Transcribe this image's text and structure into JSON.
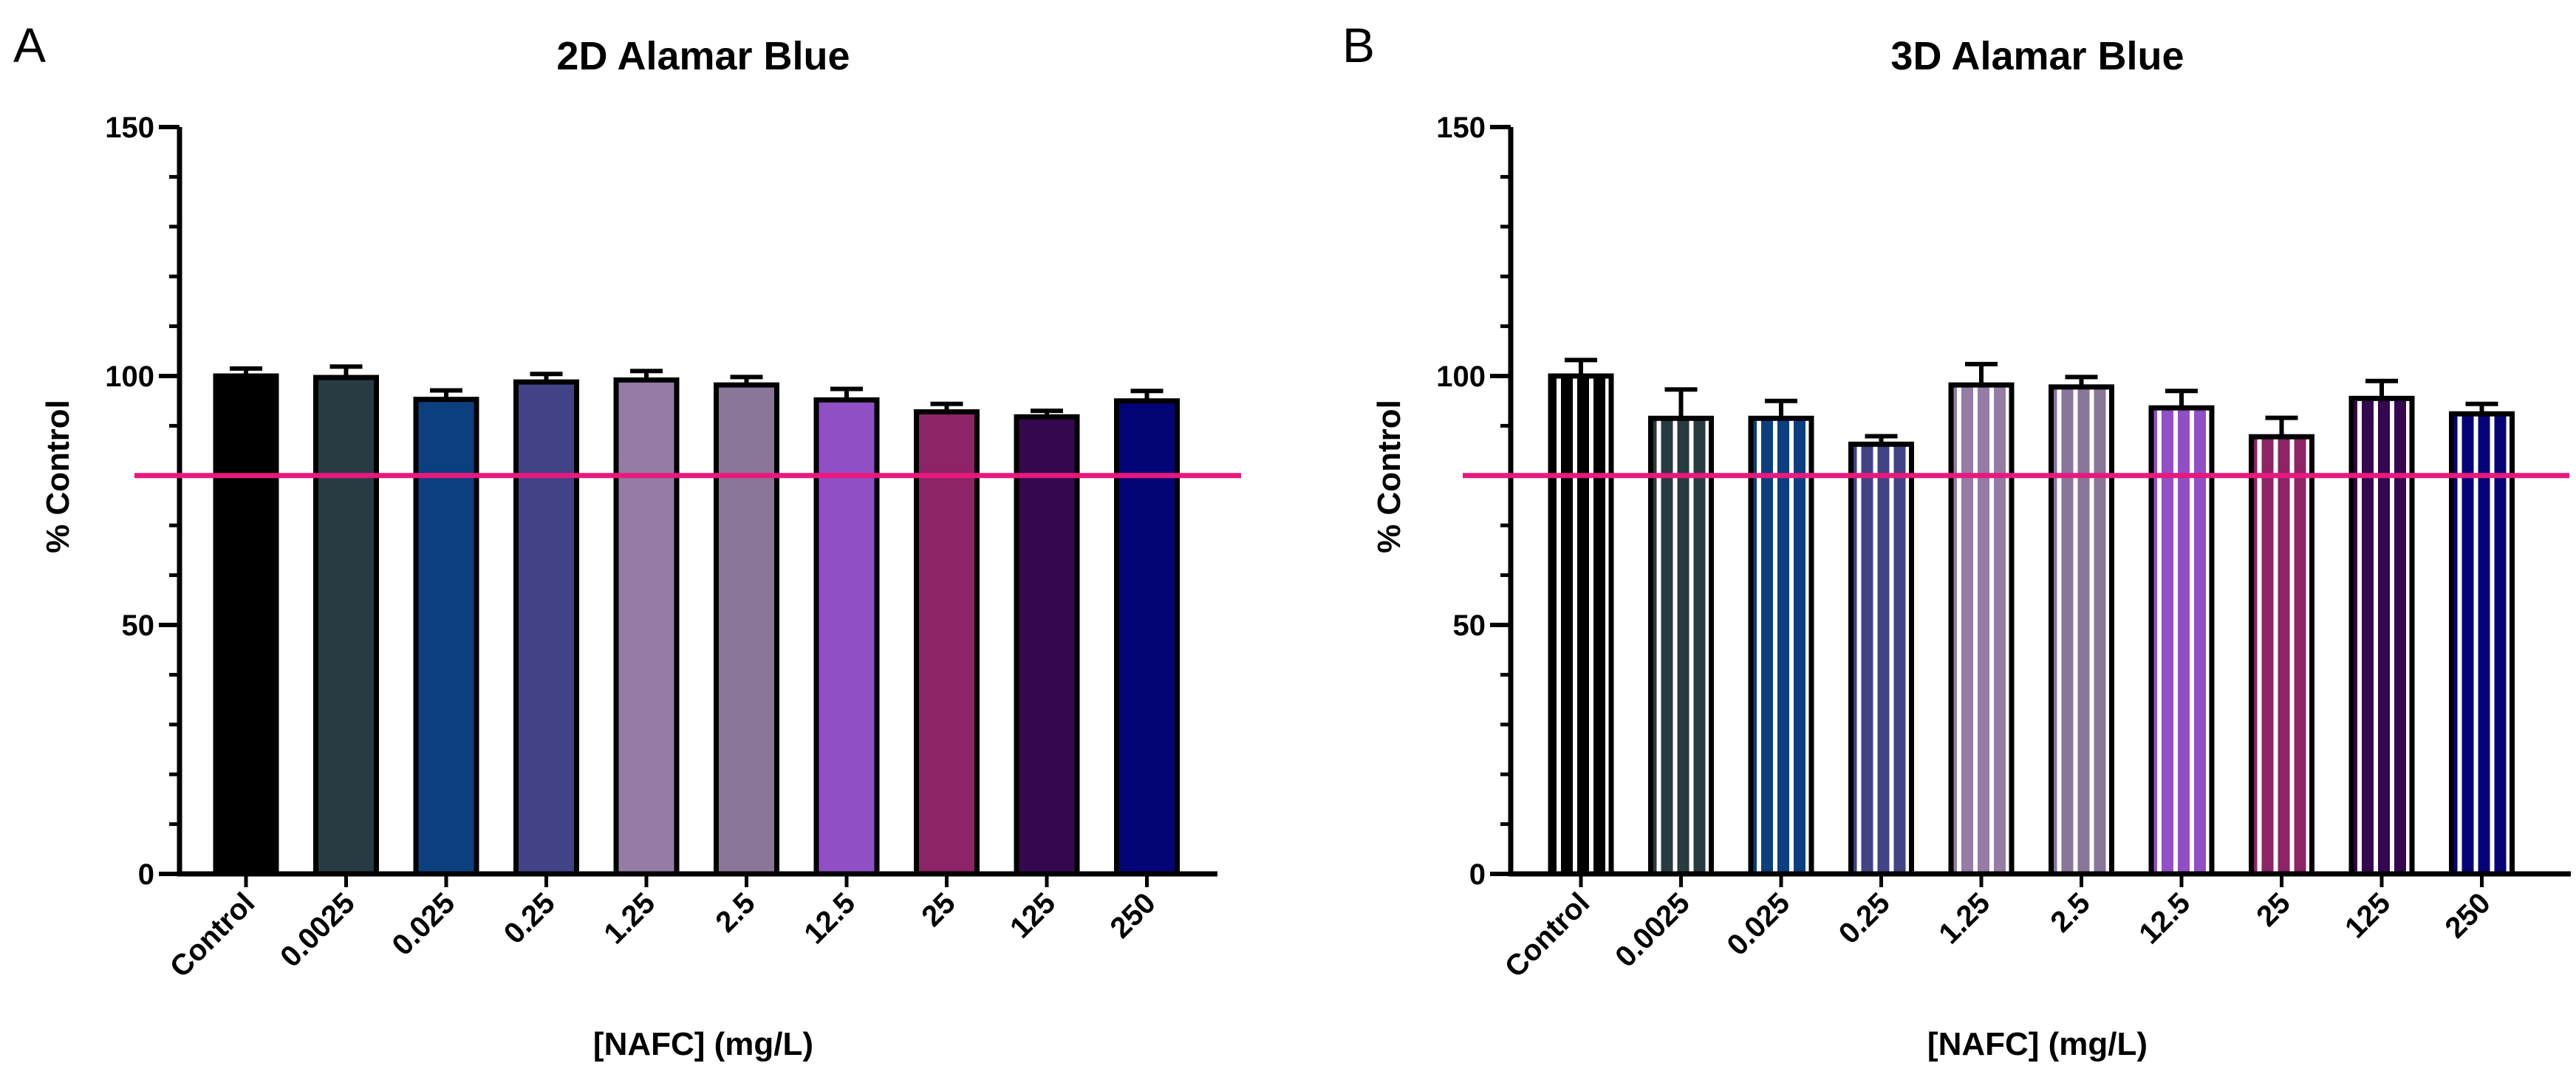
{
  "chart_data": [
    {
      "panel": "A",
      "type": "bar",
      "title": "2D Alamar Blue",
      "xlabel": "[NAFC] (mg/L)",
      "ylabel": "% Control",
      "ylim": [
        0,
        150
      ],
      "yticks": [
        0,
        50,
        100,
        150
      ],
      "bar_style": "solid",
      "categories": [
        "Control",
        "0.0025",
        "0.025",
        "0.25",
        "1.25",
        "2.5",
        "12.5",
        "25",
        "125",
        "250"
      ],
      "values": [
        100,
        99.7,
        95.3,
        98.8,
        99.2,
        98.2,
        95.2,
        92.8,
        91.8,
        95.0
      ],
      "errors": [
        1.5,
        2.2,
        1.8,
        1.6,
        1.8,
        1.6,
        2.2,
        1.6,
        1.2,
        2.0
      ],
      "colors": [
        "#000000",
        "#283b42",
        "#0c3f80",
        "#414386",
        "#947ca4",
        "#8a7698",
        "#914fc6",
        "#8c2466",
        "#35074e",
        "#050476"
      ],
      "threshold": 80,
      "threshold_color": "#e8197c"
    },
    {
      "panel": "B",
      "type": "bar",
      "title": "3D Alamar Blue",
      "xlabel": "[NAFC] (mg/L)",
      "ylabel": "% Control",
      "ylim": [
        0,
        150
      ],
      "yticks": [
        0,
        50,
        100,
        150
      ],
      "bar_style": "striped",
      "categories": [
        "Control",
        "0.0025",
        "0.025",
        "0.25",
        "1.25",
        "2.5",
        "12.5",
        "25",
        "125",
        "250"
      ],
      "values": [
        100,
        91.5,
        91.5,
        86.3,
        98.2,
        97.8,
        93.6,
        87.8,
        95.5,
        92.4
      ],
      "errors": [
        3.2,
        5.8,
        3.5,
        1.6,
        4.2,
        2.0,
        3.4,
        3.8,
        3.5,
        2.0
      ],
      "colors": [
        "#000000",
        "#283b42",
        "#0c3f80",
        "#414386",
        "#947ca4",
        "#8a7698",
        "#914fc6",
        "#8c2466",
        "#35074e",
        "#050476"
      ],
      "threshold": 80,
      "threshold_color": "#e8197c"
    }
  ]
}
